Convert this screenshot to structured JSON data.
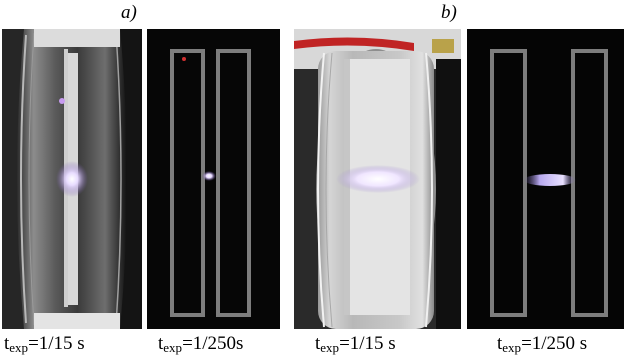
{
  "panels": {
    "a_label": "a)",
    "b_label": "b)"
  },
  "captions": [
    {
      "base": "t",
      "sub": "exp",
      "value": "=1/15 s"
    },
    {
      "base": "t",
      "sub": "exp",
      "value": "=1/250s"
    },
    {
      "base": "t",
      "sub": "exp",
      "value": "=1/15 s"
    },
    {
      "base": "t",
      "sub": "exp",
      "value": "=1/250 s"
    }
  ],
  "colors": {
    "background": "#ffffff",
    "glow": "#e6d8ff",
    "outline_gray": "#7d7d7d"
  }
}
